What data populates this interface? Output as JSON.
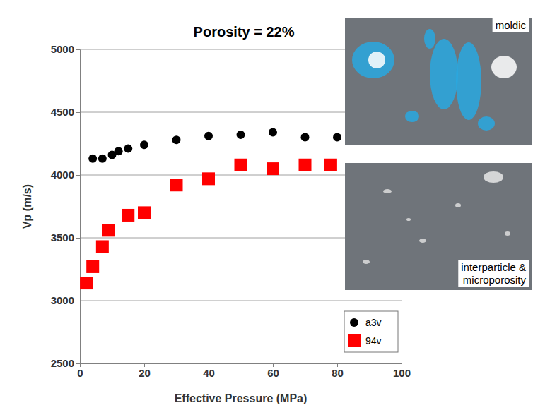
{
  "chart_data": {
    "type": "scatter",
    "title": "Porosity = 22%",
    "x_label": "Effective Pressure (MPa)",
    "y_label": "Vp (m/s)",
    "xlim": [
      0,
      100
    ],
    "xticks": [
      0,
      20,
      40,
      60,
      80,
      100
    ],
    "ylim": [
      2500,
      5000
    ],
    "yticks": [
      2500,
      3000,
      3500,
      4000,
      4500,
      5000
    ],
    "grid": true,
    "legend": "lower right",
    "annotations": [
      "moldic",
      "interparticle & microporosity"
    ],
    "series": [
      {
        "name": "a3v",
        "color": "#000000",
        "marker": "circle",
        "x": [
          4,
          7,
          10,
          12,
          15,
          20,
          30,
          40,
          50,
          60,
          70,
          80
        ],
        "values": [
          4130,
          4130,
          4160,
          4190,
          4210,
          4240,
          4280,
          4310,
          4320,
          4340,
          4300,
          4300
        ]
      },
      {
        "name": "94v",
        "color": "#ff0000",
        "marker": "square",
        "x": [
          2,
          4,
          7,
          9,
          15,
          20,
          30,
          40,
          50,
          60,
          70,
          78
        ],
        "values": [
          3140,
          3270,
          3430,
          3560,
          3680,
          3700,
          3920,
          3970,
          4080,
          4050,
          4080,
          4080
        ]
      }
    ]
  }
}
